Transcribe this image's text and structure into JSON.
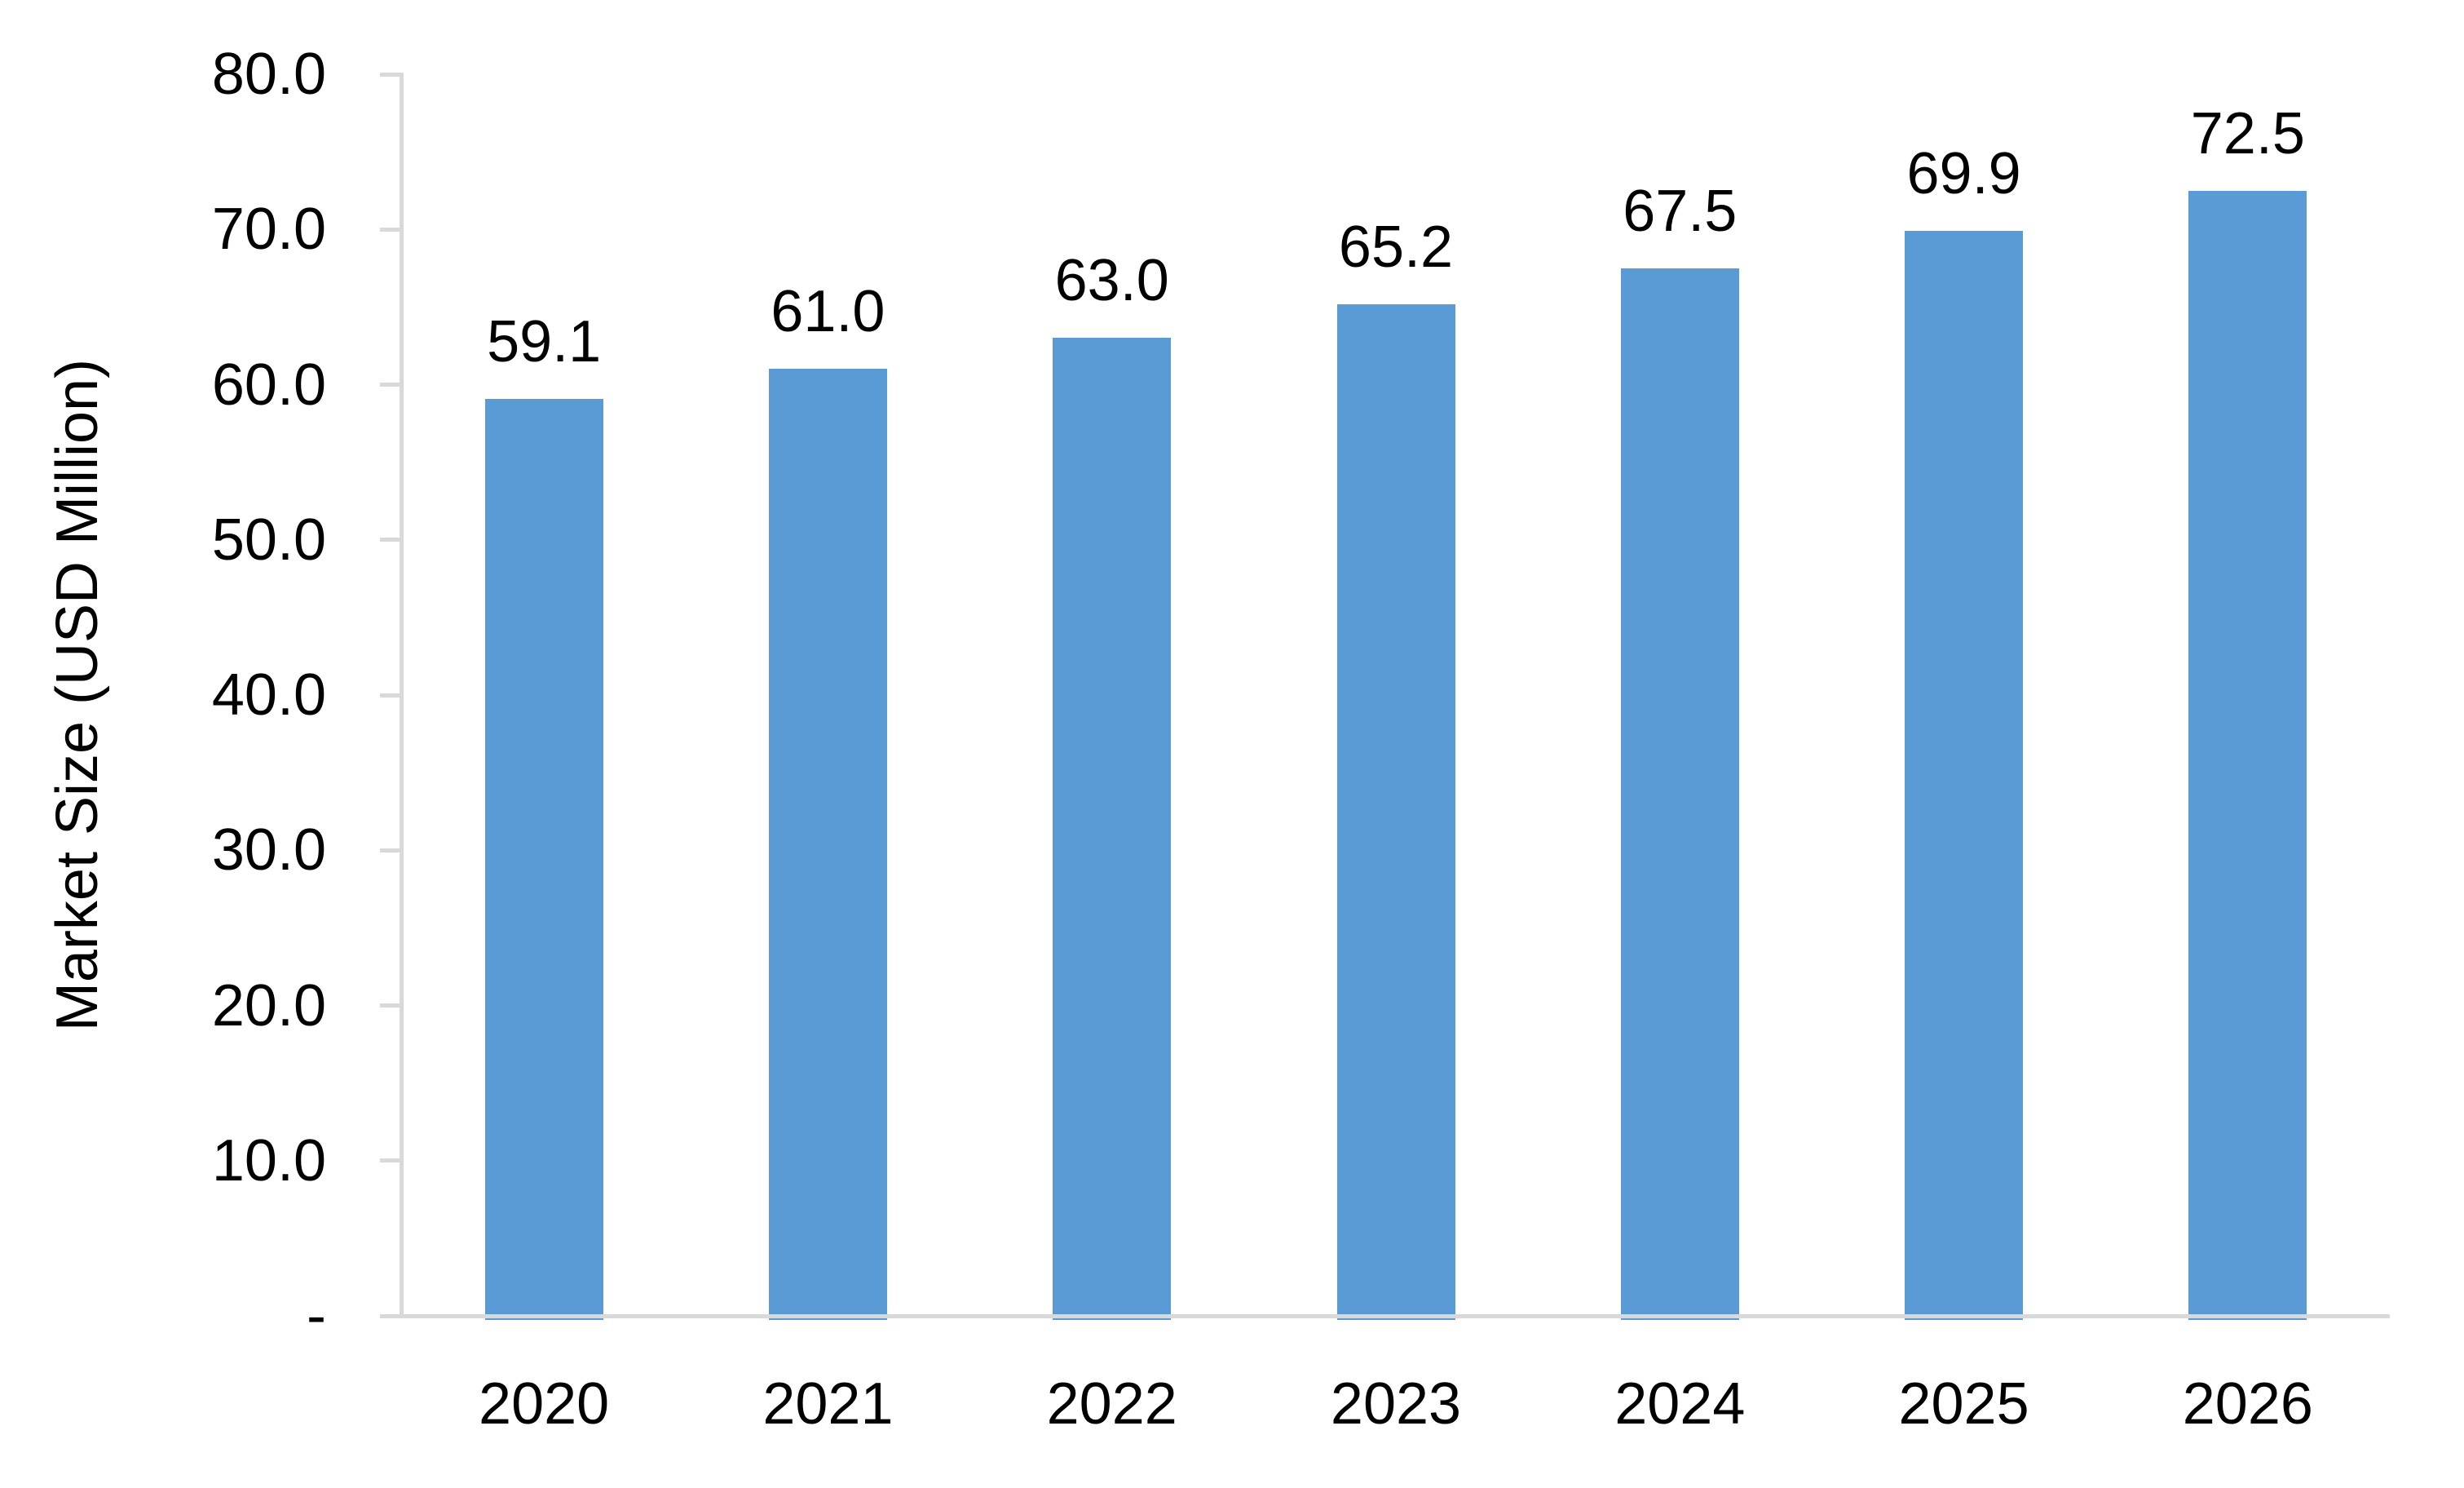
{
  "chart_data": {
    "type": "bar",
    "categories": [
      "2020",
      "2021",
      "2022",
      "2023",
      "2024",
      "2025",
      "2026"
    ],
    "values": [
      59.1,
      61.0,
      63.0,
      65.2,
      67.5,
      69.9,
      72.5
    ],
    "bar_labels": [
      "59.1",
      "61.0",
      "63.0",
      "65.2",
      "67.5",
      "69.9",
      "72.5"
    ],
    "ylabel": "Market Size (USD Million)",
    "ylim": [
      0,
      80
    ],
    "y_ticks": [
      {
        "value": 80,
        "label": "80.0"
      },
      {
        "value": 70,
        "label": "70.0"
      },
      {
        "value": 60,
        "label": "60.0"
      },
      {
        "value": 50,
        "label": "50.0"
      },
      {
        "value": 40,
        "label": "40.0"
      },
      {
        "value": 30,
        "label": "30.0"
      },
      {
        "value": 20,
        "label": "20.0"
      },
      {
        "value": 10,
        "label": "10.0"
      },
      {
        "value": 0,
        "label": "-"
      }
    ],
    "grid": "off",
    "legend": "none",
    "colors": {
      "bar": "#5B9BD5",
      "axis": "#D9D9D9",
      "text": "#000000"
    }
  }
}
